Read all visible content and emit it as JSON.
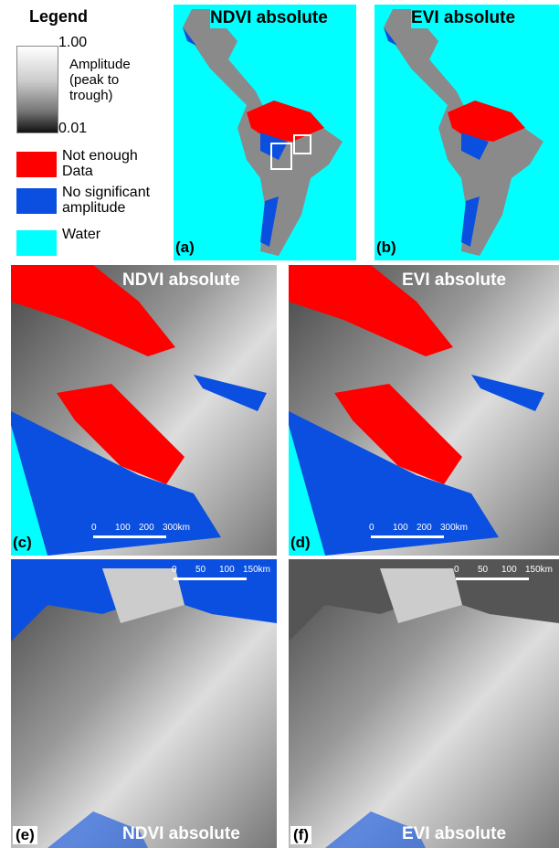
{
  "legend": {
    "title": "Legend",
    "gradient_max": "1.00",
    "gradient_label": "Amplitude (peak to trough)",
    "gradient_min": "0.01",
    "items": [
      {
        "label": "Not enough Data",
        "color": "#ff0000"
      },
      {
        "label": "No significant amplitude",
        "color": "#0a4fe0"
      },
      {
        "label": "Water",
        "color": "#00ffff"
      }
    ]
  },
  "panels": [
    {
      "label": "(a)",
      "title": "NDVI absolute"
    },
    {
      "label": "(b)",
      "title": "EVI absolute"
    },
    {
      "label": "(c)",
      "title": "NDVI absolute",
      "scale_bar": [
        "0",
        "100",
        "200",
        "300km"
      ]
    },
    {
      "label": "(d)",
      "title": "EVI absolute",
      "scale_bar": [
        "0",
        "100",
        "200",
        "300km"
      ]
    },
    {
      "label": "(e)",
      "title": "NDVI absolute",
      "scale_bar": [
        "0",
        "50",
        "100",
        "150km"
      ]
    },
    {
      "label": "(f)",
      "title": "EVI absolute",
      "scale_bar": [
        "0",
        "50",
        "100",
        "150km"
      ]
    }
  ]
}
